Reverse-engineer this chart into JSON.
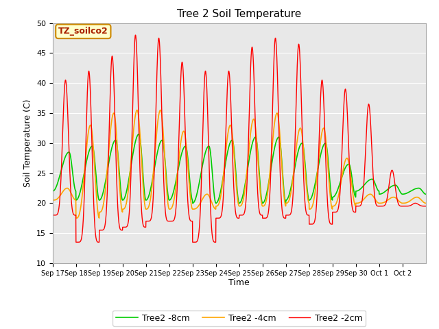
{
  "title": "Tree 2 Soil Temperature",
  "xlabel": "Time",
  "ylabel": "Soil Temperature (C)",
  "ylim": [
    10,
    50
  ],
  "annotation_label": "TZ_soilco2",
  "plot_bg_color": "#e8e8e8",
  "legend_entries": [
    "Tree2 -2cm",
    "Tree2 -4cm",
    "Tree2 -8cm"
  ],
  "line_colors": [
    "#ff0000",
    "#ffa500",
    "#00cc00"
  ],
  "xtick_labels": [
    "Sep 17",
    "Sep 18",
    "Sep 19",
    "Sep 20",
    "Sep 21",
    "Sep 22",
    "Sep 23",
    "Sep 24",
    "Sep 25",
    "Sep 26",
    "Sep 27",
    "Sep 28",
    "Sep 29",
    "Sep 30",
    "Oct 1",
    "Oct 2"
  ],
  "n_days": 16,
  "ppd": 144,
  "peaks_2cm": [
    40.5,
    42.0,
    44.5,
    48.0,
    47.5,
    43.5,
    42.0,
    42.0,
    46.0,
    47.5,
    46.5,
    40.5,
    39.0,
    36.5,
    25.5,
    20.0
  ],
  "troughs_2cm": [
    18.0,
    13.5,
    15.5,
    16.0,
    17.0,
    17.0,
    13.5,
    17.5,
    18.0,
    17.5,
    18.0,
    16.5,
    18.5,
    19.5,
    19.5,
    19.5
  ],
  "peaks_4cm": [
    22.5,
    33.0,
    35.0,
    35.5,
    35.5,
    32.0,
    21.5,
    33.0,
    34.0,
    35.0,
    32.5,
    32.5,
    27.5,
    21.5,
    21.0,
    21.0
  ],
  "troughs_4cm": [
    20.5,
    17.5,
    18.5,
    19.0,
    19.0,
    19.0,
    19.0,
    19.5,
    19.5,
    19.5,
    20.0,
    19.0,
    19.5,
    20.0,
    20.0,
    20.0
  ],
  "peaks_8cm": [
    28.5,
    29.5,
    30.5,
    31.5,
    30.5,
    29.5,
    29.5,
    30.5,
    31.0,
    31.0,
    30.0,
    30.0,
    26.5,
    24.0,
    23.0,
    22.5
  ],
  "troughs_8cm": [
    22.0,
    20.5,
    20.5,
    20.5,
    20.5,
    20.5,
    20.0,
    20.0,
    20.0,
    20.0,
    20.5,
    20.5,
    21.0,
    22.0,
    21.5,
    21.5
  ],
  "peak_time_2cm": 0.55,
  "peak_time_4cm": 0.62,
  "peak_time_8cm": 0.7,
  "sharpness_2cm": 8,
  "sharpness_4cm": 3,
  "sharpness_8cm": 2
}
